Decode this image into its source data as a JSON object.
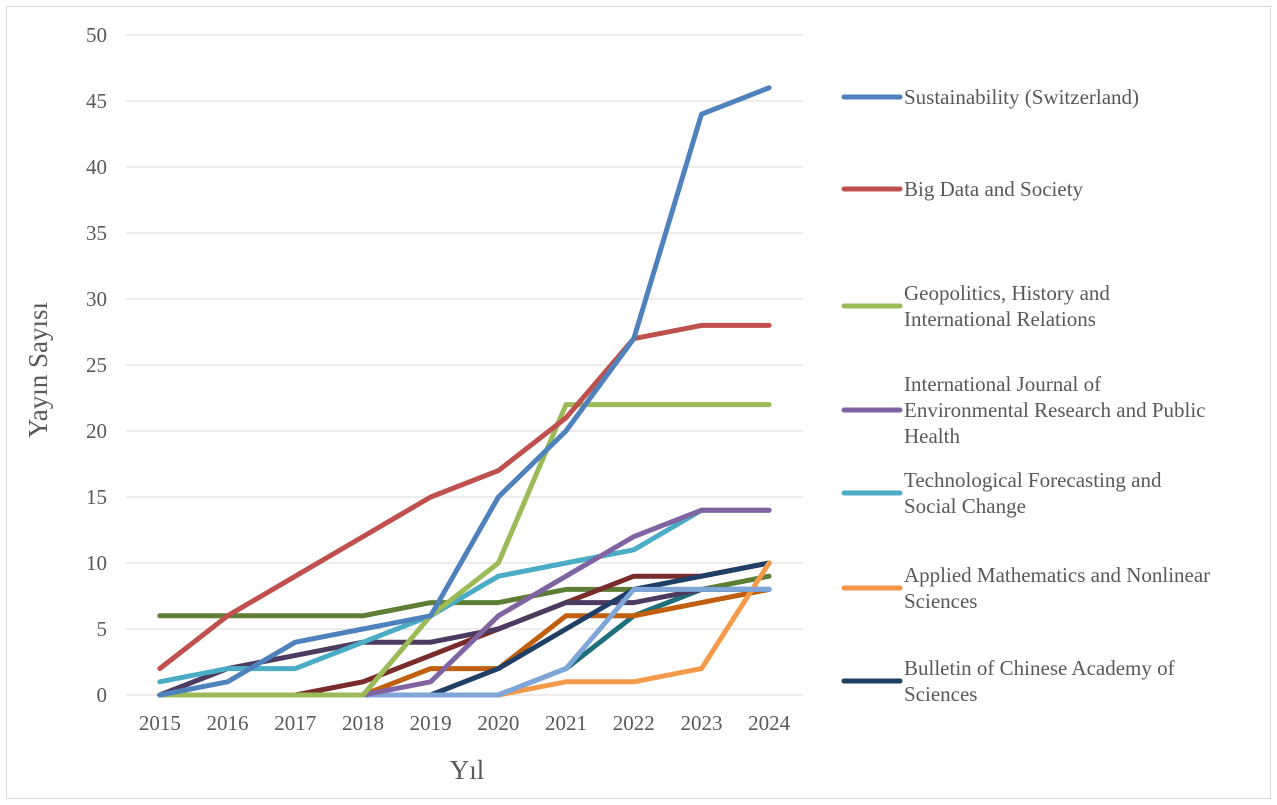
{
  "chart_data": {
    "type": "line",
    "title": "",
    "xlabel": "Yıl",
    "ylabel": "Yayın Sayısı",
    "ylim": [
      0,
      50
    ],
    "yticks": [
      0,
      5,
      10,
      15,
      20,
      25,
      30,
      35,
      40,
      45,
      50
    ],
    "grid": true,
    "legend_position": "right",
    "categories": [
      "2015",
      "2016",
      "2017",
      "2018",
      "2019",
      "2020",
      "2021",
      "2022",
      "2023",
      "2024"
    ],
    "series": [
      {
        "name": "",
        "color": "#5E7E36",
        "values": [
          6,
          6,
          6,
          6,
          7,
          7,
          8,
          8,
          8,
          9
        ]
      },
      {
        "name": "",
        "color": "#1F6E7B",
        "values": [
          0,
          0,
          0,
          0,
          0,
          0,
          2,
          6,
          8,
          8
        ]
      },
      {
        "name": "",
        "color": "#C05F0F",
        "values": [
          0,
          0,
          0,
          0,
          2,
          2,
          6,
          6,
          7,
          8
        ]
      },
      {
        "name": "",
        "color": "#7A2B2B",
        "values": [
          0,
          0,
          0,
          1,
          3,
          5,
          7,
          9,
          9,
          10
        ]
      },
      {
        "name": "",
        "color": "#4E3A5F",
        "values": [
          0,
          2,
          3,
          4,
          4,
          5,
          7,
          7,
          8,
          8
        ]
      },
      {
        "name": "Bulletin of Chinese Academy of Sciences",
        "color": "#1F3F66",
        "values": [
          0,
          0,
          0,
          0,
          0,
          2,
          5,
          8,
          9,
          10
        ]
      },
      {
        "name": "Applied Mathematics and Nonlinear Sciences",
        "color": "#F59A4A",
        "values": [
          0,
          0,
          0,
          0,
          0,
          0,
          1,
          1,
          2,
          10
        ]
      },
      {
        "name": "",
        "color": "#7FA6D9",
        "values": [
          0,
          0,
          0,
          0,
          0,
          0,
          2,
          8,
          8,
          8
        ]
      },
      {
        "name": "Technological Forecasting and Social Change",
        "color": "#4BACC6",
        "values": [
          1,
          2,
          2,
          4,
          6,
          9,
          10,
          11,
          14,
          14
        ]
      },
      {
        "name": "International Journal of Environmental Research and Public Health",
        "color": "#8064A2",
        "values": [
          0,
          0,
          0,
          0,
          1,
          6,
          9,
          12,
          14,
          14
        ]
      },
      {
        "name": "Geopolitics, History and International Relations",
        "color": "#9BBB59",
        "values": [
          0,
          0,
          0,
          0,
          6,
          10,
          22,
          22,
          22,
          22
        ]
      },
      {
        "name": "Big Data and Society",
        "color": "#C0504D",
        "values": [
          2,
          6,
          9,
          12,
          15,
          17,
          21,
          27,
          28,
          28
        ]
      },
      {
        "name": "Sustainability (Switzerland)",
        "color": "#4F81BD",
        "values": [
          0,
          1,
          4,
          5,
          6,
          15,
          20,
          27,
          44,
          46
        ]
      }
    ],
    "legend": [
      {
        "lines": [
          "Sustainability (Switzerland)"
        ],
        "color": "#4F81BD"
      },
      {
        "lines": [
          "Big Data and Society"
        ],
        "color": "#C0504D"
      },
      {
        "lines": [
          "Geopolitics, History and",
          "International Relations"
        ],
        "color": "#9BBB59"
      },
      {
        "lines": [
          "International Journal of",
          "Environmental Research and Public",
          "Health"
        ],
        "color": "#8064A2"
      },
      {
        "lines": [
          "Technological Forecasting and",
          "Social Change"
        ],
        "color": "#4BACC6"
      },
      {
        "lines": [
          "Applied Mathematics and Nonlinear",
          "Sciences"
        ],
        "color": "#F79646"
      },
      {
        "lines": [
          "Bulletin of Chinese Academy of",
          "Sciences"
        ],
        "color": "#1F3F66"
      }
    ]
  }
}
